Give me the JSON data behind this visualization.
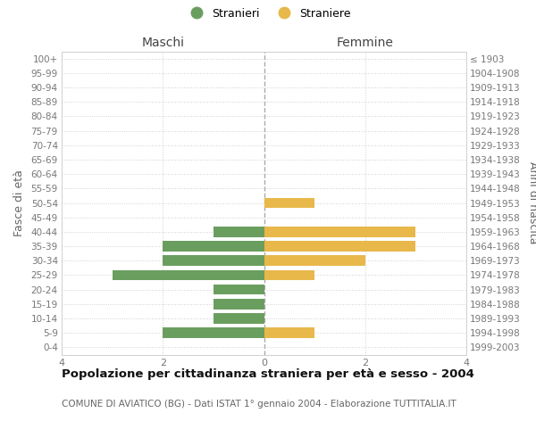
{
  "age_groups": [
    "0-4",
    "5-9",
    "10-14",
    "15-19",
    "20-24",
    "25-29",
    "30-34",
    "35-39",
    "40-44",
    "45-49",
    "50-54",
    "55-59",
    "60-64",
    "65-69",
    "70-74",
    "75-79",
    "80-84",
    "85-89",
    "90-94",
    "95-99",
    "100+"
  ],
  "birth_years": [
    "1999-2003",
    "1994-1998",
    "1989-1993",
    "1984-1988",
    "1979-1983",
    "1974-1978",
    "1969-1973",
    "1964-1968",
    "1959-1963",
    "1954-1958",
    "1949-1953",
    "1944-1948",
    "1939-1943",
    "1934-1938",
    "1929-1933",
    "1924-1928",
    "1919-1923",
    "1914-1918",
    "1909-1913",
    "1904-1908",
    "≤ 1903"
  ],
  "males": [
    0,
    2,
    1,
    1,
    1,
    3,
    2,
    2,
    1,
    0,
    0,
    0,
    0,
    0,
    0,
    0,
    0,
    0,
    0,
    0,
    0
  ],
  "females": [
    0,
    1,
    0,
    0,
    0,
    1,
    2,
    3,
    3,
    0,
    1,
    0,
    0,
    0,
    0,
    0,
    0,
    0,
    0,
    0,
    0
  ],
  "male_color": "#6a9e5f",
  "female_color": "#e8b84b",
  "male_label": "Stranieri",
  "female_label": "Straniere",
  "title": "Popolazione per cittadinanza straniera per età e sesso - 2004",
  "subtitle": "COMUNE DI AVIATICO (BG) - Dati ISTAT 1° gennaio 2004 - Elaborazione TUTTITALIA.IT",
  "left_header": "Maschi",
  "right_header": "Femmine",
  "ylabel_left": "Fasce di età",
  "ylabel_right": "Anni di nascita",
  "xlim": 4,
  "background_color": "#ffffff",
  "grid_color": "#d0d0d0",
  "bar_height": 0.72
}
